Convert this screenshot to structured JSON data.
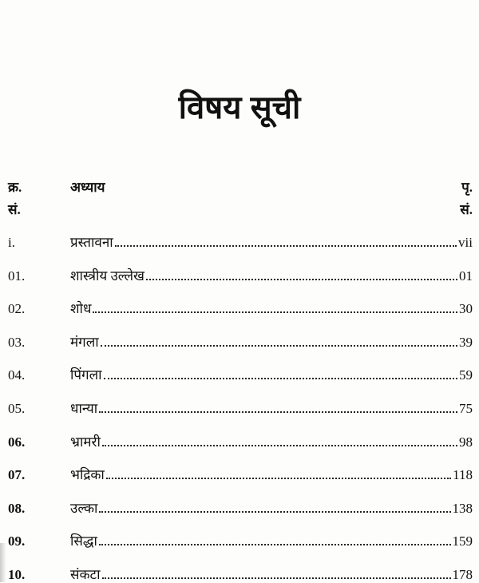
{
  "title": "विषय सूची",
  "header": {
    "serial_line1": "क्र.",
    "serial_line2": "सं.",
    "chapter": "अध्याय",
    "page_line1": "पृ.",
    "page_line2": "सं."
  },
  "entries": [
    {
      "num": "i.",
      "chapter": "प्रस्तावना",
      "page": "vii"
    },
    {
      "num": "01.",
      "chapter": "शास्त्रीय उल्लेख",
      "page": "01"
    },
    {
      "num": "02.",
      "chapter": "शोध",
      "page": "30"
    },
    {
      "num": "03.",
      "chapter": "मंगला",
      "page": "39"
    },
    {
      "num": "04.",
      "chapter": "पिंगला",
      "page": "59"
    },
    {
      "num": "05.",
      "chapter": "धान्या",
      "page": "75"
    },
    {
      "num": "06.",
      "chapter": "भ्रामरी",
      "page": "98"
    },
    {
      "num": "07.",
      "chapter": "भद्रिका",
      "page": "118"
    },
    {
      "num": "08.",
      "chapter": "उल्का",
      "page": "138"
    },
    {
      "num": "09.",
      "chapter": "सिद्धा",
      "page": "159"
    },
    {
      "num": "10.",
      "chapter": "संकटा",
      "page": "178"
    }
  ]
}
